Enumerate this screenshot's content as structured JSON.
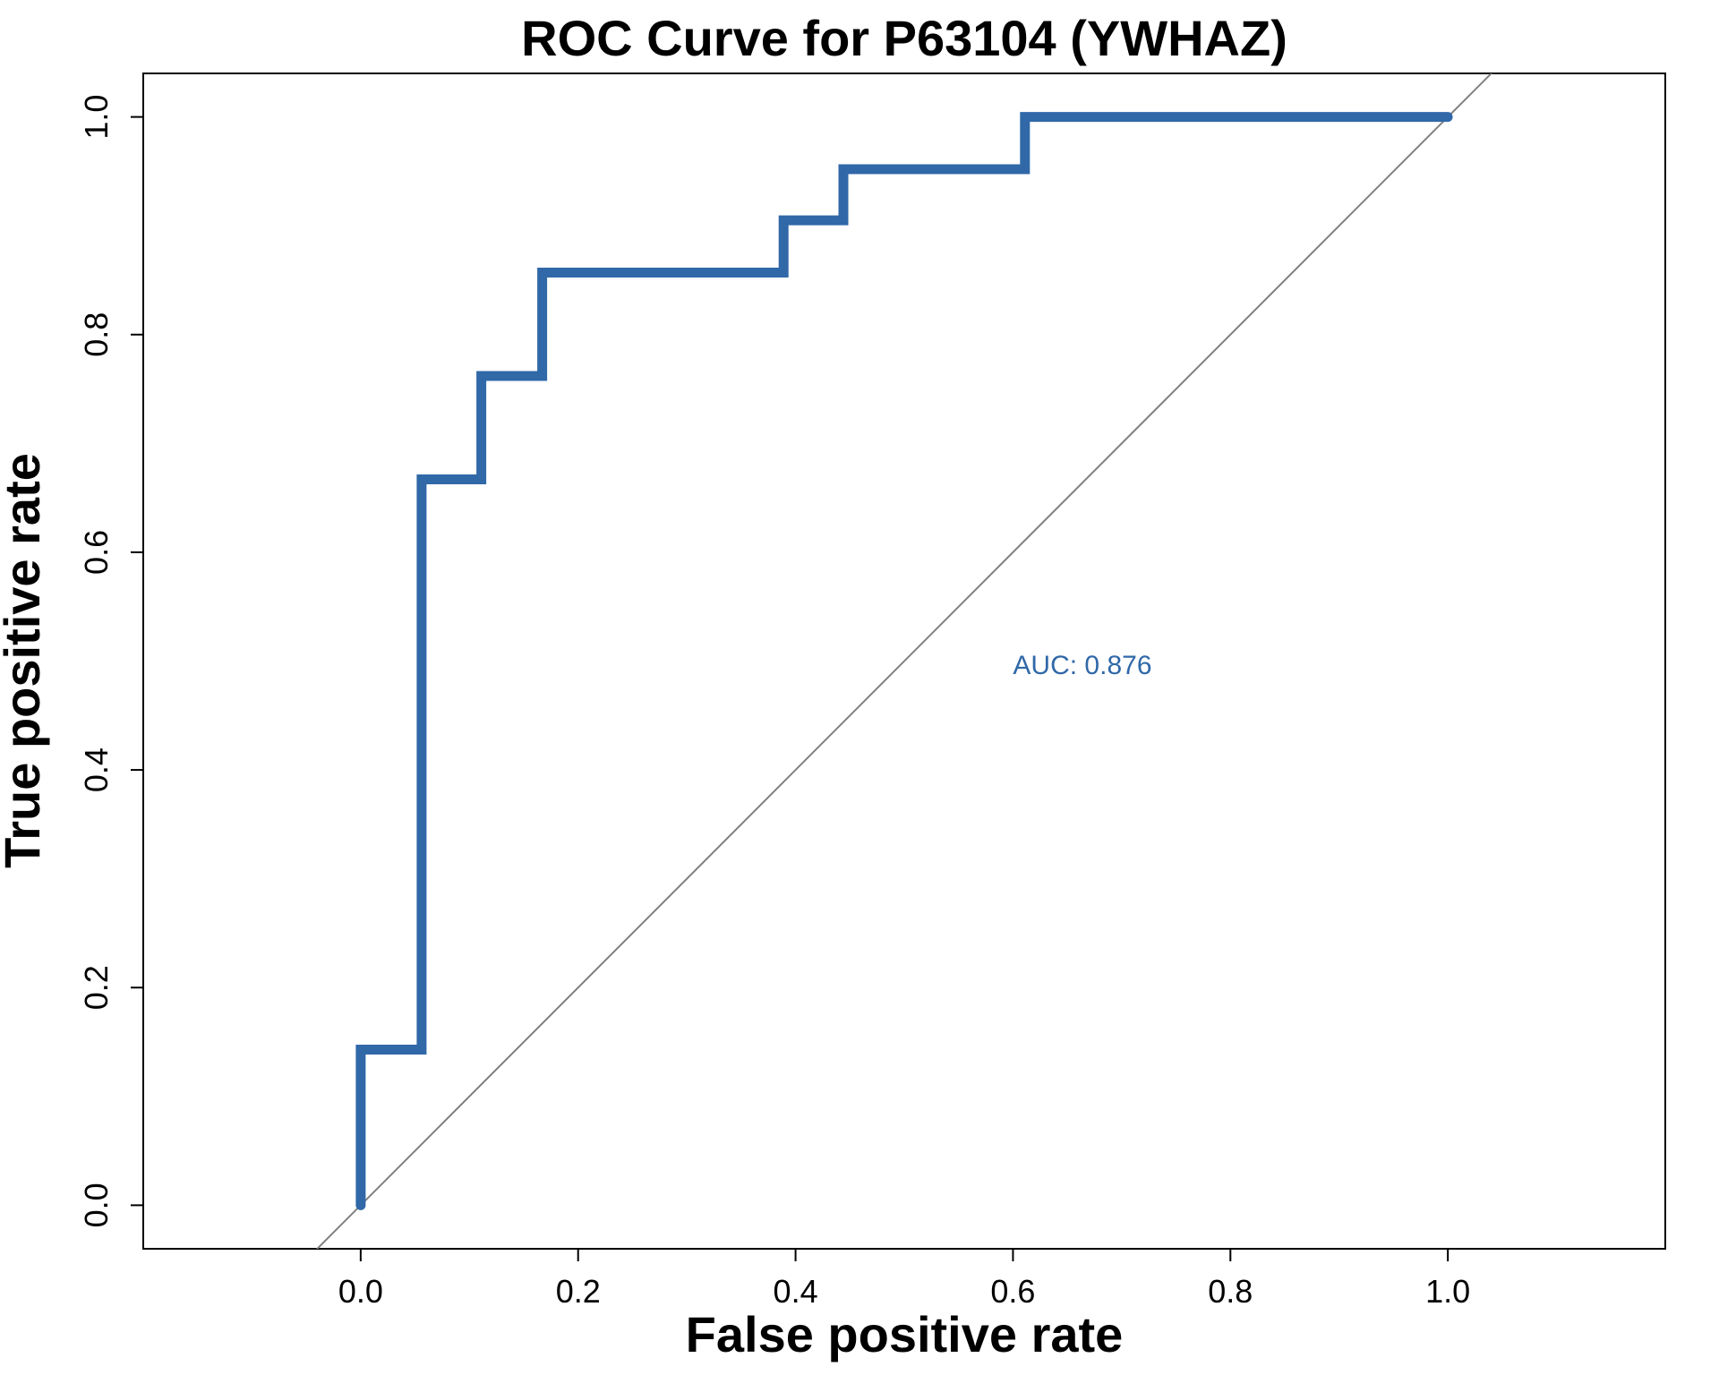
{
  "chart_data": {
    "type": "line",
    "title": "ROC Curve for P63104 (YWHAZ)",
    "xlabel": "False positive rate",
    "ylabel": "True positive rate",
    "xlim": [
      -0.2,
      1.2
    ],
    "ylim": [
      -0.04,
      1.04
    ],
    "xticks": [
      "0.0",
      "0.2",
      "0.4",
      "0.6",
      "0.8",
      "1.0"
    ],
    "yticks": [
      "0.0",
      "0.2",
      "0.4",
      "0.6",
      "0.8",
      "1.0"
    ],
    "grid": false,
    "series": [
      {
        "color": "#3068a8",
        "x": [
          0,
          0,
          0.056,
          0.056,
          0.111,
          0.111,
          0.167,
          0.167,
          0.389,
          0.389,
          0.444,
          0.444,
          0.611,
          0.611,
          1.0
        ],
        "y": [
          0,
          0.143,
          0.143,
          0.667,
          0.667,
          0.762,
          0.762,
          0.857,
          0.857,
          0.905,
          0.905,
          0.952,
          0.952,
          1.0,
          1.0
        ]
      }
    ],
    "reference_line": {
      "color": "#808080",
      "x": [
        -0.2,
        1.2
      ],
      "y": [
        -0.2,
        1.2
      ]
    },
    "annotations": [
      {
        "text": "AUC: 0.876",
        "x": 0.6,
        "y": 0.488,
        "color": "#3068a8"
      }
    ]
  }
}
